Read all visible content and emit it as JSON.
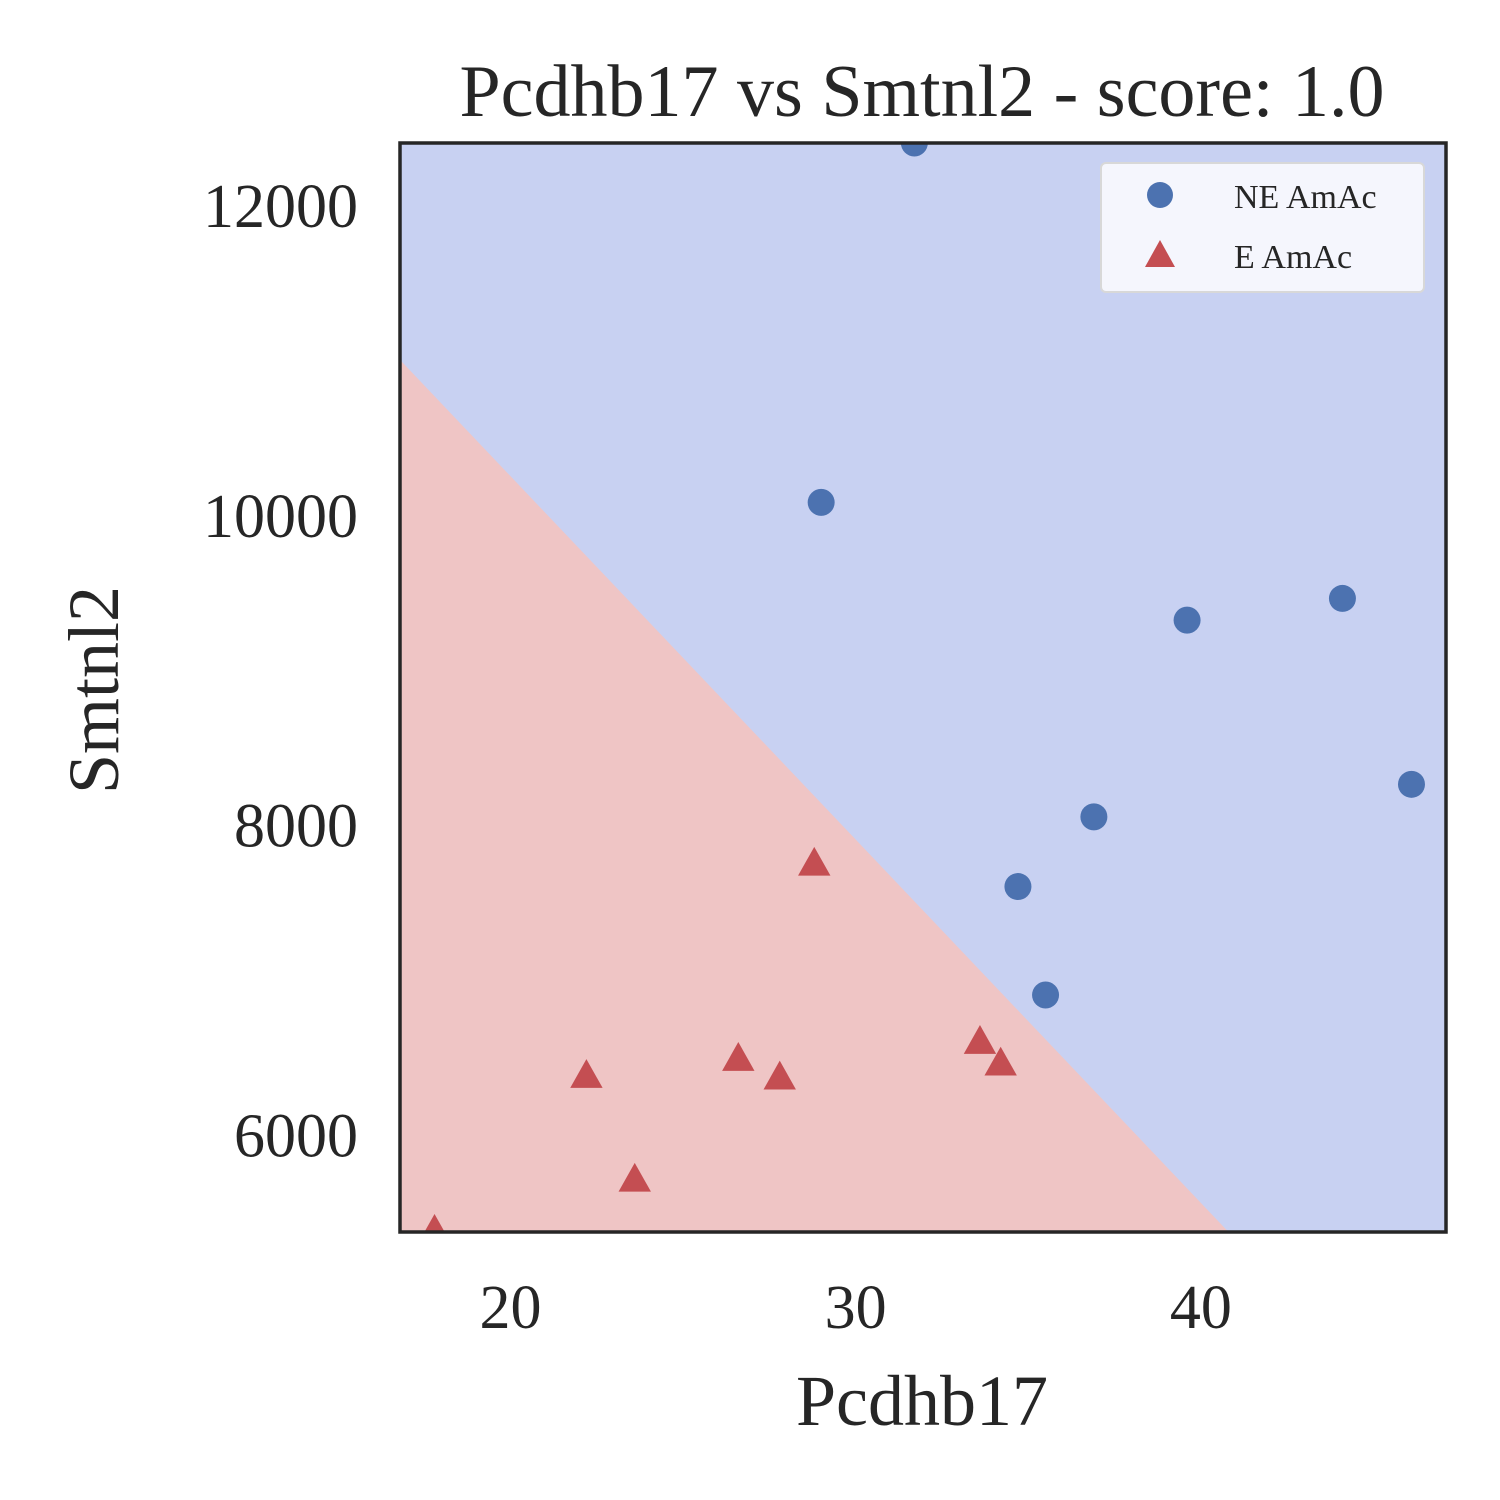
{
  "chart_data": {
    "type": "scatter",
    "title": "Pcdhb17 vs Smtnl2 - score: 1.0",
    "xlabel": "Pcdhb17",
    "ylabel": "Smtnl2",
    "xlim": [
      16.8,
      47.1
    ],
    "ylim": [
      5370,
      12400
    ],
    "xticks": [
      20,
      30,
      40
    ],
    "yticks": [
      6000,
      8000,
      10000,
      12000
    ],
    "xtick_labels": [
      "20",
      "30",
      "40"
    ],
    "ytick_labels": [
      "6000",
      "8000",
      "10000",
      "12000"
    ],
    "grid": false,
    "legend_position": "top-right",
    "decision_boundary": {
      "points": [
        [
          16.8,
          11000
        ],
        [
          40.8,
          5370
        ]
      ],
      "upper_region_color": "#c8d1f2",
      "lower_region_color": "#efc5c5"
    },
    "series": [
      {
        "name": "NE AmAc",
        "marker": "circle",
        "color": "#4c72b0",
        "points": [
          [
            31.7,
            12400
          ],
          [
            29.0,
            10080
          ],
          [
            39.6,
            9320
          ],
          [
            44.1,
            9460
          ],
          [
            46.1,
            8260
          ],
          [
            36.9,
            8050
          ],
          [
            34.7,
            7600
          ],
          [
            35.5,
            6900
          ]
        ]
      },
      {
        "name": "E AmAc",
        "marker": "triangle",
        "color": "#c44e52",
        "points": [
          [
            28.8,
            7740
          ],
          [
            33.6,
            6590
          ],
          [
            34.2,
            6450
          ],
          [
            26.6,
            6480
          ],
          [
            27.8,
            6360
          ],
          [
            22.2,
            6370
          ],
          [
            23.6,
            5700
          ],
          [
            17.8,
            5370
          ]
        ]
      }
    ]
  }
}
